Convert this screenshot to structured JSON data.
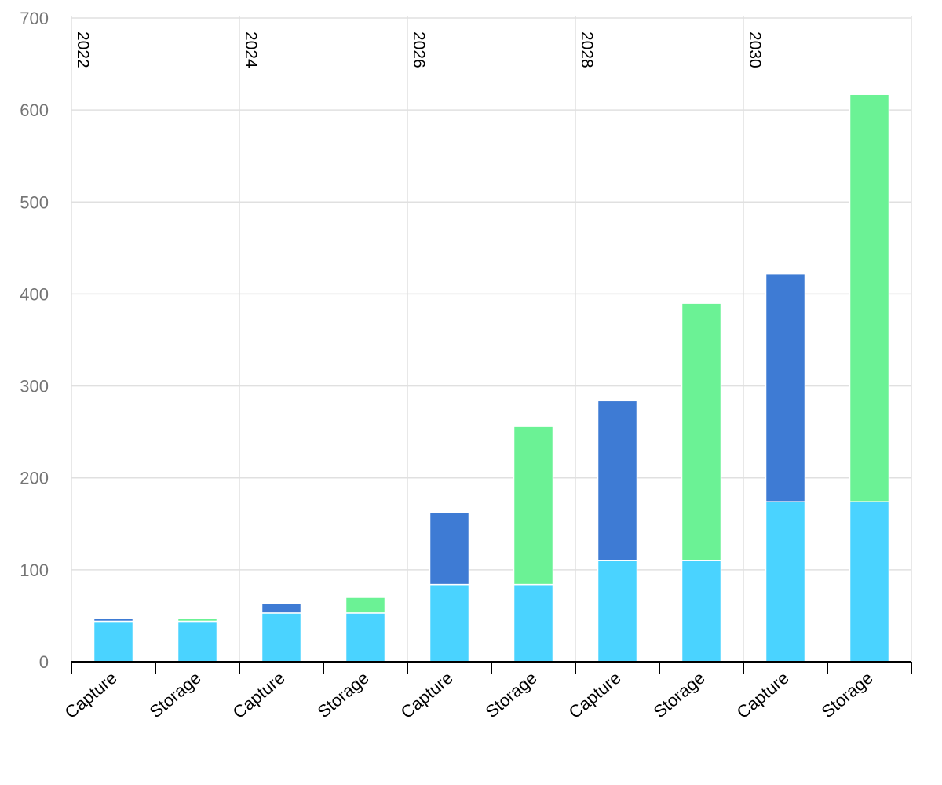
{
  "chart_data": {
    "type": "bar",
    "stacked": true,
    "groups": [
      "2022",
      "2024",
      "2026",
      "2028",
      "2030"
    ],
    "categories": [
      "Capture",
      "Storage",
      "Capture",
      "Storage",
      "Capture",
      "Storage",
      "Capture",
      "Storage",
      "Capture",
      "Storage"
    ],
    "series": [
      {
        "color": "#4ad3ff",
        "values": [
          44,
          44,
          53,
          53,
          84,
          84,
          110,
          110,
          174,
          174
        ]
      },
      {
        "color": "#3e7bd4",
        "values": [
          3,
          0,
          10,
          0,
          78,
          0,
          174,
          0,
          248,
          0
        ]
      },
      {
        "color": "#6bf295",
        "values": [
          0,
          3,
          0,
          17,
          0,
          172,
          0,
          280,
          0,
          443
        ]
      }
    ],
    "ylim": [
      0,
      700
    ],
    "yticks": [
      0,
      100,
      200,
      300,
      400,
      500,
      600,
      700
    ],
    "grid": true,
    "legend": "none"
  }
}
